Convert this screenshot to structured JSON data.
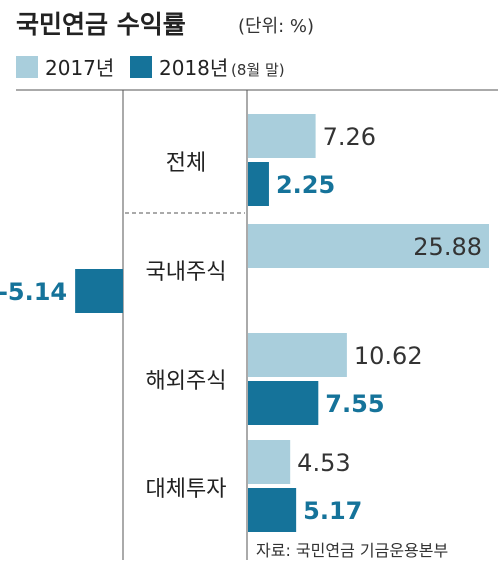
{
  "title": "국민연금 수익률",
  "unit": "(단위: %)",
  "legend": [
    {
      "label": "2017년",
      "sub": "",
      "color": "#a9cedc"
    },
    {
      "label": "2018년",
      "sub": "(8월 말)",
      "color": "#15739a"
    }
  ],
  "source": "자료: 국민연금 기금운용본부",
  "chart_data": {
    "type": "bar",
    "orientation": "horizontal",
    "title": "국민연금 수익률",
    "unit": "%",
    "categories": [
      "전체",
      "국내주식",
      "해외주식",
      "대체투자"
    ],
    "series": [
      {
        "name": "2017년",
        "color": "#a9cedc",
        "values": [
          7.26,
          25.88,
          10.62,
          4.53
        ]
      },
      {
        "name": "2018년(8월 말)",
        "color": "#15739a",
        "values": [
          2.25,
          -5.14,
          7.55,
          5.17
        ]
      }
    ],
    "value_labels": [
      [
        "7.26",
        "25.88",
        "10.62",
        "4.53"
      ],
      [
        "2.25",
        "-5.14",
        "7.55",
        "5.17"
      ]
    ],
    "label_colors": [
      "#333333",
      "#15739a"
    ],
    "grid": false
  }
}
